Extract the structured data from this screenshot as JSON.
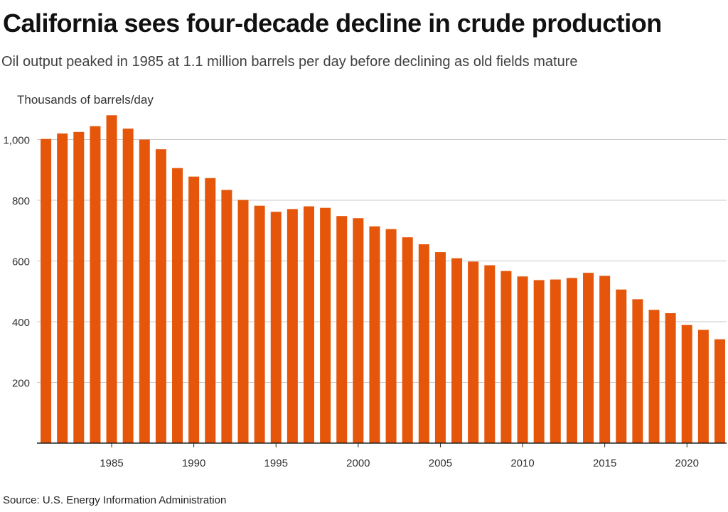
{
  "header": {
    "title": "California sees four-decade decline in crude production",
    "subtitle": "Oil output peaked in 1985 at 1.1 million barrels per day before declining as old fields mature"
  },
  "footer": {
    "source": "Source: U.S. Energy Information Administration"
  },
  "colors": {
    "bar": "#e5560b",
    "grid": "#c8c8c8",
    "axis": "#222222",
    "tick_text": "#333333"
  },
  "chart_data": {
    "type": "bar",
    "title": "California sees four-decade decline in crude production",
    "subtitle": "Oil output peaked in 1985 at 1.1 million barrels per day before declining as old fields mature",
    "xlabel": "",
    "ylabel": "Thousands of barrels/day",
    "ylim": [
      0,
      1080
    ],
    "yticks": [
      200,
      400,
      600,
      800,
      1000
    ],
    "ytick_labels": [
      "200",
      "400",
      "600",
      "800",
      "1,000"
    ],
    "xticks": [
      1985,
      1990,
      1995,
      2000,
      2005,
      2010,
      2015,
      2020
    ],
    "xtick_labels": [
      "1985",
      "1990",
      "1995",
      "2000",
      "2005",
      "2010",
      "2015",
      "2020"
    ],
    "grid": true,
    "categories": [
      1981,
      1982,
      1983,
      1984,
      1985,
      1986,
      1987,
      1988,
      1989,
      1990,
      1991,
      1992,
      1993,
      1994,
      1995,
      1996,
      1997,
      1998,
      1999,
      2000,
      2001,
      2002,
      2003,
      2004,
      2005,
      2006,
      2007,
      2008,
      2009,
      2010,
      2011,
      2012,
      2013,
      2014,
      2015,
      2016,
      2017,
      2018,
      2019,
      2020,
      2021,
      2022
    ],
    "values": [
      1002,
      1020,
      1025,
      1044,
      1080,
      1036,
      1000,
      968,
      906,
      878,
      873,
      834,
      801,
      782,
      762,
      771,
      780,
      775,
      748,
      741,
      714,
      705,
      678,
      655,
      629,
      609,
      598,
      586,
      567,
      549,
      537,
      539,
      544,
      561,
      551,
      506,
      474,
      439,
      428,
      389,
      373,
      342
    ]
  }
}
